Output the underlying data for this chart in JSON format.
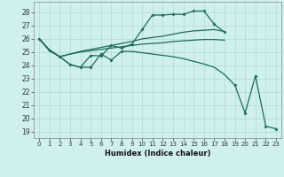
{
  "background_color": "#d0f0f0",
  "grid_color": "#b0d8d0",
  "line_color": "#1a6b5a",
  "xlabel": "Humidex (Indice chaleur)",
  "xlim": [
    -0.5,
    23.5
  ],
  "ylim": [
    18.5,
    28.8
  ],
  "yticks": [
    19,
    20,
    21,
    22,
    23,
    24,
    25,
    26,
    27,
    28
  ],
  "xticks": [
    0,
    1,
    2,
    3,
    4,
    5,
    6,
    7,
    8,
    9,
    10,
    11,
    12,
    13,
    14,
    15,
    16,
    17,
    18,
    19,
    20,
    21,
    22,
    23
  ],
  "line1_x": [
    0,
    1,
    2,
    3,
    4,
    5,
    6,
    7,
    8,
    9,
    10,
    11,
    12,
    13,
    14,
    15,
    16,
    17,
    18
  ],
  "line1_y": [
    26.0,
    25.1,
    24.65,
    24.05,
    23.85,
    24.75,
    24.7,
    25.5,
    25.3,
    25.6,
    26.7,
    27.8,
    27.8,
    27.85,
    27.85,
    28.1,
    28.1,
    27.1,
    26.5
  ],
  "line2_x": [
    0,
    1,
    2,
    3,
    4,
    5,
    6,
    7,
    8,
    9,
    10,
    11,
    12,
    13,
    14,
    15,
    16,
    17,
    18
  ],
  "line2_y": [
    26.0,
    25.15,
    24.65,
    24.85,
    25.05,
    25.2,
    25.35,
    25.5,
    25.65,
    25.8,
    26.0,
    26.1,
    26.2,
    26.35,
    26.5,
    26.6,
    26.65,
    26.7,
    26.55
  ],
  "line3_x": [
    0,
    1,
    2,
    3,
    4,
    5,
    6,
    7,
    8,
    9,
    10,
    11,
    12,
    13,
    14,
    15,
    16,
    17,
    18
  ],
  "line3_y": [
    26.0,
    25.15,
    24.65,
    24.85,
    25.0,
    25.1,
    25.2,
    25.3,
    25.4,
    25.5,
    25.6,
    25.65,
    25.7,
    25.8,
    25.85,
    25.9,
    25.95,
    25.95,
    25.9
  ],
  "line4_x": [
    0,
    1,
    2,
    3,
    4,
    5,
    6,
    7,
    8,
    9,
    10,
    11,
    12,
    13,
    14,
    15,
    16,
    17,
    18,
    19,
    20,
    21,
    22,
    23
  ],
  "line4_y": [
    26.0,
    25.1,
    24.65,
    24.05,
    23.85,
    23.85,
    24.85,
    24.4,
    25.05,
    25.05,
    24.95,
    24.85,
    24.75,
    24.65,
    24.5,
    24.3,
    24.1,
    23.85,
    23.3,
    22.5,
    20.4,
    23.2,
    19.4,
    19.2
  ],
  "marker_x": [
    0,
    1,
    2,
    3,
    4,
    5,
    6,
    7,
    8,
    9,
    10,
    11,
    12,
    13,
    14,
    15,
    16,
    17,
    18
  ],
  "marker_y": [
    26.0,
    25.1,
    24.65,
    24.05,
    23.85,
    24.75,
    24.7,
    25.5,
    25.3,
    25.6,
    26.7,
    27.8,
    27.8,
    27.85,
    27.85,
    28.1,
    28.1,
    27.1,
    26.5
  ],
  "marker4_x": [
    5,
    6,
    7,
    8,
    19,
    20,
    21,
    22,
    23
  ],
  "marker4_y": [
    23.85,
    24.85,
    24.4,
    25.05,
    22.5,
    20.4,
    23.2,
    19.4,
    19.2
  ]
}
